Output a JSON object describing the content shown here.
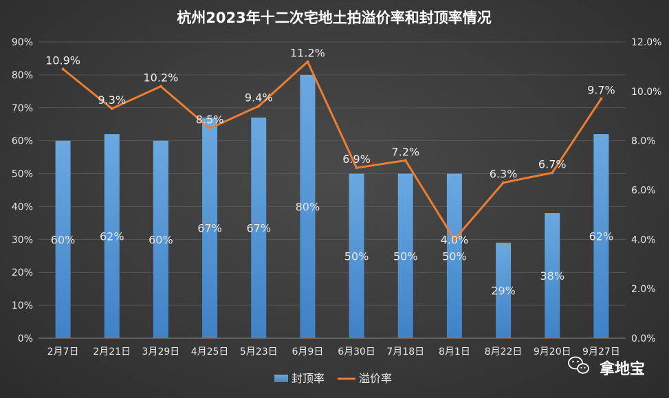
{
  "chart_data": {
    "type": "bar",
    "title": "杭州2023年十二次宅地土拍溢价率和封顶率情况",
    "categories": [
      "2月7日",
      "2月21日",
      "3月29日",
      "4月25日",
      "5月23日",
      "6月9日",
      "6月30日",
      "7月18日",
      "8月1日",
      "8月22日",
      "9月20日",
      "9月27日"
    ],
    "series": [
      {
        "name": "封顶率",
        "kind": "bar",
        "axis": "left",
        "color": "#5b9bd5",
        "values": [
          60,
          62,
          60,
          67,
          67,
          80,
          50,
          50,
          50,
          29,
          38,
          62
        ],
        "labels": [
          "60%",
          "62%",
          "60%",
          "67%",
          "67%",
          "80%",
          "50%",
          "50%",
          "50%",
          "29%",
          "38%",
          "62%"
        ]
      },
      {
        "name": "溢价率",
        "kind": "line",
        "axis": "right",
        "color": "#ed7d31",
        "values": [
          10.9,
          9.3,
          10.2,
          8.5,
          9.4,
          11.2,
          6.9,
          7.2,
          4.0,
          6.3,
          6.7,
          9.7
        ],
        "labels": [
          "10.9%",
          "9.3%",
          "10.2%",
          "8.5%",
          "9.4%",
          "11.2%",
          "6.9%",
          "7.2%",
          "4.0%",
          "6.3%",
          "6.7%",
          "9.7%"
        ]
      }
    ],
    "y_left": {
      "min": 0,
      "max": 90,
      "ticks": [
        "0%",
        "10%",
        "20%",
        "30%",
        "40%",
        "50%",
        "60%",
        "70%",
        "80%",
        "90%"
      ]
    },
    "y_right": {
      "min": 0,
      "max": 12,
      "ticks": [
        "0.0%",
        "2.0%",
        "4.0%",
        "6.0%",
        "8.0%",
        "10.0%",
        "12.0%"
      ]
    },
    "grid": true,
    "legend": "bottom"
  },
  "brand": {
    "name": "拿地宝",
    "icon": "wechat-icon"
  }
}
